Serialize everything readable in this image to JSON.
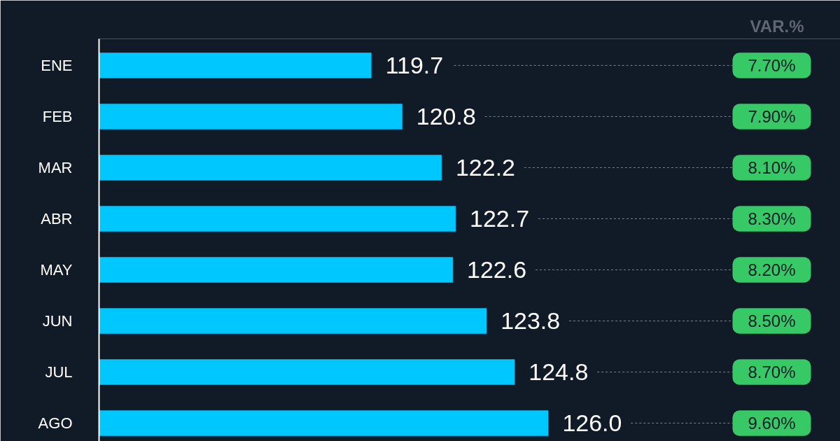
{
  "chart_data": {
    "type": "bar",
    "orientation": "horizontal",
    "categories": [
      "ENE",
      "FEB",
      "MAR",
      "ABR",
      "MAY",
      "JUN",
      "JUL",
      "AGO"
    ],
    "values": [
      119.7,
      120.8,
      122.2,
      122.7,
      122.6,
      123.8,
      124.8,
      126.0
    ],
    "value_labels": [
      "119.7",
      "120.8",
      "122.2",
      "122.7",
      "122.6",
      "123.8",
      "124.8",
      "126.0"
    ],
    "color": "#00c8ff",
    "xlim": [
      110,
      136.4
    ],
    "tick_labels": "y",
    "grid": false,
    "annotations": [
      "VAR.%",
      "7.70%",
      "7.90%",
      "8.10%",
      "8.30%",
      "8.20%",
      "8.50%",
      "8.70%",
      "9.60%"
    ]
  }
}
